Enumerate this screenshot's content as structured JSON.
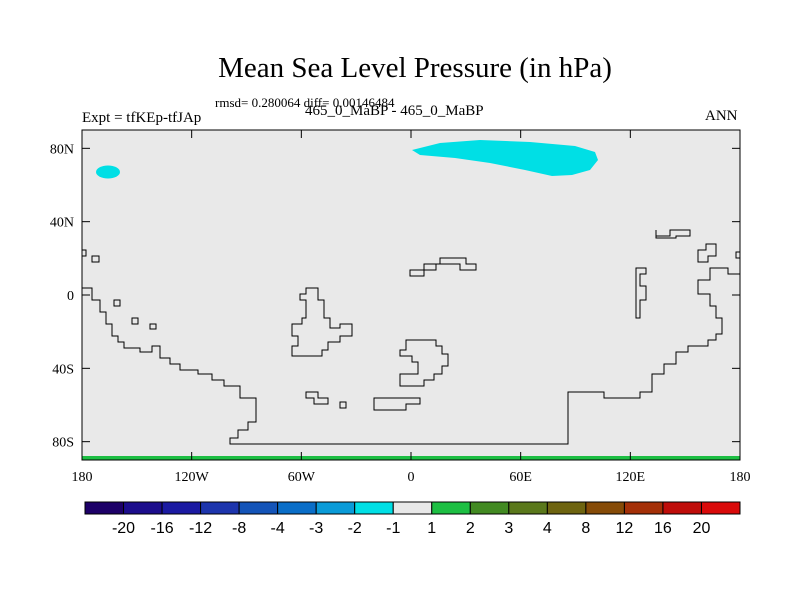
{
  "header": {
    "title": "Mean Sea Level Pressure (in hPa)",
    "stats": "rmsd= 0.280064 diff= 0.00146484",
    "expt_label": "Expt = tfKEp-tfJAp",
    "comparison": "465_0_MaBP - 465_0_MaBP",
    "season": "ANN"
  },
  "chart_data": {
    "type": "heatmap",
    "title": "Mean Sea Level Pressure (in hPa)",
    "x_ticks": [
      "180",
      "120W",
      "60W",
      "0",
      "60E",
      "120E",
      "180"
    ],
    "x_tick_values": [
      -180,
      -120,
      -60,
      0,
      60,
      120,
      180
    ],
    "y_ticks": [
      "80N",
      "40N",
      "0",
      "40S",
      "80S"
    ],
    "y_tick_values": [
      80,
      40,
      0,
      -40,
      -80
    ],
    "xlim": [
      -180,
      180
    ],
    "ylim": [
      -90,
      90
    ],
    "background_level": "-1 to 1",
    "regions": [
      {
        "level": "-2 to -1",
        "description": "large patch near 80N",
        "lon_range": [
          0,
          100
        ],
        "lat_range": [
          69,
          80
        ]
      },
      {
        "level": "-2 to -1",
        "description": "small patch near 67N",
        "lon_range": [
          -172,
          -159
        ],
        "lat_range": [
          63,
          70
        ]
      },
      {
        "level": "1 to 2",
        "description": "thin band at southern edge",
        "lon_range": [
          -180,
          180
        ],
        "lat_range": [
          -90,
          -89
        ]
      }
    ],
    "colorbar": {
      "labels": [
        "-20",
        "-16",
        "-12",
        "-8",
        "-4",
        "-3",
        "-2",
        "-1",
        "1",
        "2",
        "3",
        "4",
        "8",
        "12",
        "16",
        "20"
      ],
      "colors": [
        "#1d0068",
        "#1c0d8c",
        "#1b1aa2",
        "#1d35ad",
        "#1454b8",
        "#0a6ec8",
        "#0a9bd8",
        "#00dfe5",
        "#e8e8e8",
        "#1dbf43",
        "#428a22",
        "#5a781b",
        "#6e6410",
        "#864b07",
        "#a43008",
        "#bf0d0a",
        "#d90a0a"
      ]
    }
  }
}
